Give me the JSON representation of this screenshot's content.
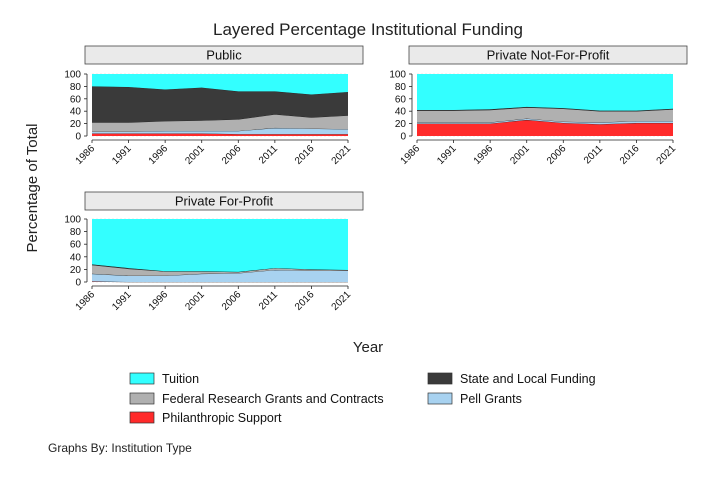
{
  "figure": {
    "title": "Layered Percentage Institutional Funding",
    "ylabel": "Percentage of Total",
    "xlabel": "Year",
    "note": "Graphs By: Institution Type"
  },
  "colors": {
    "tuition": "#33ffff",
    "state_local": "#3a3a3a",
    "federal": "#b0b0b0",
    "pell": "#a8d2f0",
    "philanthropic": "#ff2a2a",
    "panel_header_bg": "#eaeaea",
    "gridline": "#f2dcdc"
  },
  "legend": {
    "items": [
      {
        "key": "tuition",
        "label": "Tuition"
      },
      {
        "key": "state_local",
        "label": "State and Local Funding"
      },
      {
        "key": "federal",
        "label": "Federal Research Grants and Contracts"
      },
      {
        "key": "pell",
        "label": "Pell Grants"
      },
      {
        "key": "philanthropic",
        "label": "Philanthropic Support"
      }
    ]
  },
  "chart_data": [
    {
      "type": "area",
      "stacked": true,
      "title": "Public",
      "x": [
        1986,
        1991,
        1996,
        2001,
        2006,
        2011,
        2016,
        2021
      ],
      "xticks": [
        "1986",
        "1991",
        "1996",
        "2001",
        "2006",
        "2011",
        "2016",
        "2021"
      ],
      "ylim": [
        0,
        100
      ],
      "yticks": [
        "0",
        "20",
        "40",
        "60",
        "80",
        "100"
      ],
      "grid": true,
      "series": [
        {
          "key": "philanthropic",
          "name": "Philanthropic Support",
          "values": [
            4,
            4,
            4,
            4,
            3,
            3,
            3,
            3
          ]
        },
        {
          "key": "pell",
          "name": "Pell Grants",
          "values": [
            3,
            3,
            4,
            4,
            5,
            10,
            9,
            8
          ]
        },
        {
          "key": "federal",
          "name": "Federal Research Grants and Contracts",
          "values": [
            15,
            15,
            16,
            17,
            19,
            22,
            18,
            22
          ]
        },
        {
          "key": "state_local",
          "name": "State and Local Funding",
          "values": [
            58,
            57,
            51,
            53,
            45,
            37,
            37,
            38
          ]
        },
        {
          "key": "tuition",
          "name": "Tuition",
          "values": [
            20,
            21,
            25,
            22,
            28,
            28,
            33,
            29
          ]
        }
      ]
    },
    {
      "type": "area",
      "stacked": true,
      "title": "Private Not-For-Profit",
      "x": [
        1986,
        1991,
        1996,
        2001,
        2006,
        2011,
        2016,
        2021
      ],
      "xticks": [
        "1986",
        "1991",
        "1996",
        "2001",
        "2006",
        "2011",
        "2016",
        "2021"
      ],
      "ylim": [
        0,
        100
      ],
      "yticks": [
        "0",
        "20",
        "40",
        "60",
        "80",
        "100"
      ],
      "grid": true,
      "series": [
        {
          "key": "philanthropic",
          "name": "Philanthropic Support",
          "values": [
            20,
            20,
            20,
            26,
            21,
            19,
            21,
            21
          ]
        },
        {
          "key": "pell",
          "name": "Pell Grants",
          "values": [
            2,
            2,
            2,
            2,
            2,
            3,
            3,
            3
          ]
        },
        {
          "key": "federal",
          "name": "Federal Research Grants and Contracts",
          "values": [
            19,
            19,
            20,
            18,
            21,
            18,
            16,
            19
          ]
        },
        {
          "key": "state_local",
          "name": "State and Local Funding",
          "values": [
            1,
            1,
            1,
            1,
            1,
            1,
            1,
            1
          ]
        },
        {
          "key": "tuition",
          "name": "Tuition",
          "values": [
            58,
            58,
            57,
            53,
            55,
            59,
            59,
            56
          ]
        }
      ]
    },
    {
      "type": "area",
      "stacked": true,
      "title": "Private For-Profit",
      "x": [
        1986,
        1991,
        1996,
        2001,
        2006,
        2011,
        2016,
        2021
      ],
      "xticks": [
        "1986",
        "1991",
        "1996",
        "2001",
        "2006",
        "2011",
        "2016",
        "2021"
      ],
      "ylim": [
        0,
        100
      ],
      "yticks": [
        "0",
        "20",
        "40",
        "60",
        "80",
        "100"
      ],
      "grid": true,
      "series": [
        {
          "key": "philanthropic",
          "name": "Philanthropic Support",
          "values": [
            1,
            0,
            0,
            0,
            0,
            0,
            0,
            0
          ]
        },
        {
          "key": "pell",
          "name": "Pell Grants",
          "values": [
            12,
            10,
            10,
            13,
            14,
            19,
            18,
            18
          ]
        },
        {
          "key": "federal",
          "name": "Federal Research Grants and Contracts",
          "values": [
            14,
            11,
            7,
            4,
            2,
            3,
            2,
            1
          ]
        },
        {
          "key": "state_local",
          "name": "State and Local Funding",
          "values": [
            1,
            1,
            0,
            0,
            0,
            0,
            0,
            0
          ]
        },
        {
          "key": "tuition",
          "name": "Tuition",
          "values": [
            72,
            78,
            83,
            83,
            84,
            78,
            80,
            81
          ]
        }
      ]
    }
  ]
}
